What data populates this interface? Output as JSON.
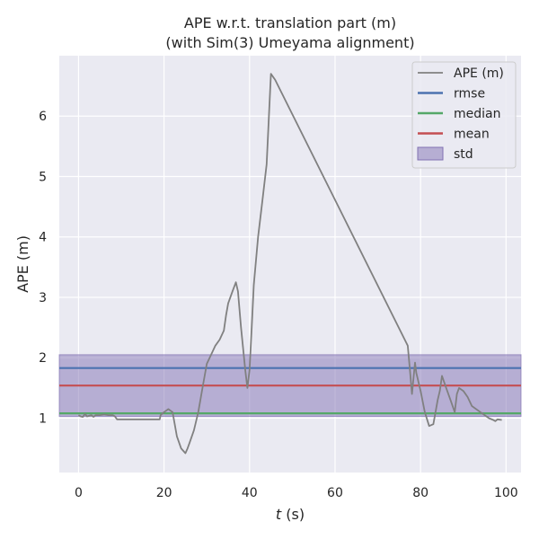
{
  "chart_data": {
    "type": "line",
    "title": "APE w.r.t. translation part (m)",
    "subtitle": "(with Sim(3) Umeyama alignment)",
    "xlabel_italic": "t",
    "xlabel_unit": "(s)",
    "ylabel": "APE (m)",
    "xlim": [
      -4.5,
      103.5
    ],
    "ylim": [
      0.1,
      7.0
    ],
    "xticks": [
      0,
      20,
      40,
      60,
      80,
      100
    ],
    "yticks": [
      1,
      2,
      3,
      4,
      5,
      6
    ],
    "grid": true,
    "legend_position": "top-right",
    "colors": {
      "background": "#eaeaf2",
      "grid": "#ffffff",
      "ape": "#808080",
      "rmse": "#4c72b0",
      "median": "#55a868",
      "mean": "#c44e52",
      "std": "#8172b3"
    },
    "legend": [
      "APE (m)",
      "rmse",
      "median",
      "mean",
      "std"
    ],
    "stats": {
      "rmse": 1.83,
      "median": 1.08,
      "mean": 1.54,
      "std_lower": 1.03,
      "std_upper": 2.05
    },
    "series": [
      {
        "name": "APE (m)",
        "x": [
          0,
          0.5,
          1,
          1.5,
          2,
          3,
          3.5,
          4,
          5,
          6,
          7,
          8,
          8.5,
          9,
          10,
          12,
          15,
          19,
          19.2,
          20,
          21,
          22,
          22.5,
          23,
          24,
          25,
          25.5,
          26,
          27,
          28,
          29,
          30,
          31,
          32,
          33,
          34,
          34.5,
          35,
          36,
          36.8,
          37.3,
          38,
          39,
          39.5,
          40,
          40.5,
          41,
          42,
          43,
          44,
          45,
          46,
          77,
          77.5,
          78,
          78.7,
          79,
          80,
          81,
          82,
          83,
          83.5,
          84,
          84.5,
          85,
          86,
          87,
          88,
          88.5,
          89,
          90,
          91,
          92,
          94,
          95,
          96,
          97,
          97.5,
          98,
          99
        ],
        "values": [
          1.05,
          1.03,
          1.02,
          1.07,
          1.03,
          1.05,
          1.02,
          1.05,
          1.05,
          1.06,
          1.05,
          1.05,
          1.03,
          0.98,
          0.98,
          0.98,
          0.98,
          0.98,
          1.05,
          1.1,
          1.15,
          1.1,
          0.9,
          0.7,
          0.5,
          0.42,
          0.5,
          0.6,
          0.8,
          1.1,
          1.5,
          1.9,
          2.05,
          2.2,
          2.3,
          2.45,
          2.7,
          2.9,
          3.1,
          3.25,
          3.1,
          2.5,
          1.8,
          1.5,
          1.8,
          2.5,
          3.2,
          4.0,
          4.6,
          5.2,
          6.7,
          6.6,
          2.2,
          1.8,
          1.4,
          1.92,
          1.75,
          1.45,
          1.1,
          0.87,
          0.9,
          1.1,
          1.3,
          1.45,
          1.7,
          1.5,
          1.3,
          1.1,
          1.4,
          1.5,
          1.45,
          1.35,
          1.2,
          1.1,
          1.05,
          1.0,
          0.97,
          0.95,
          0.98,
          0.97
        ]
      }
    ]
  }
}
